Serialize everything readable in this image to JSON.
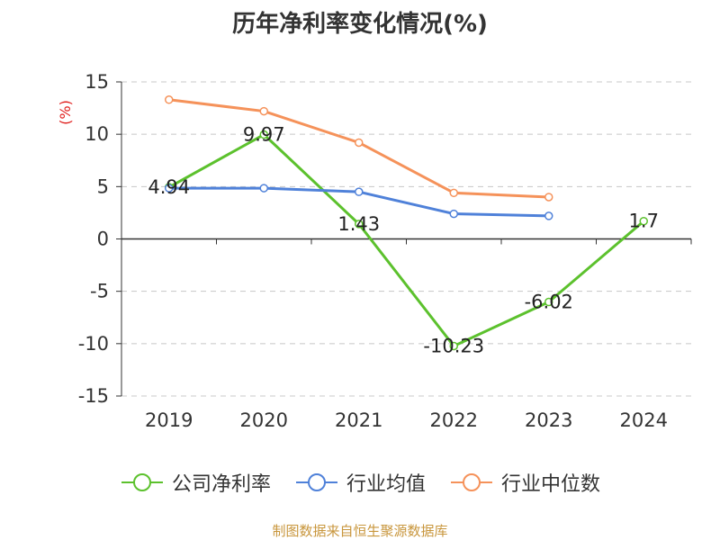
{
  "chart_data": {
    "type": "line",
    "title": "历年净利率变化情况(%)",
    "ylabel": "(%)",
    "xlabel": "",
    "categories": [
      "2019",
      "2020",
      "2021",
      "2022",
      "2023",
      "2024"
    ],
    "ylim": [
      -15,
      15
    ],
    "yticks": [
      15,
      10,
      5,
      0,
      -5,
      -10,
      -15
    ],
    "grid": true,
    "legend_position": "bottom",
    "series": [
      {
        "name": "公司净利率",
        "color": "#5cc12d",
        "values": [
          4.94,
          9.97,
          1.43,
          -10.23,
          -6.02,
          1.7
        ],
        "labels": [
          "4.94",
          "9.97",
          "1.43",
          "-10.23",
          "-6.02",
          "1.7"
        ]
      },
      {
        "name": "行业均值",
        "color": "#4f81d9",
        "values": [
          4.85,
          4.85,
          4.5,
          2.4,
          2.2,
          null
        ]
      },
      {
        "name": "行业中位数",
        "color": "#f5925a",
        "values": [
          13.3,
          12.2,
          9.2,
          4.4,
          4.0,
          null
        ]
      }
    ]
  },
  "source": "制图数据来自恒生聚源数据库"
}
